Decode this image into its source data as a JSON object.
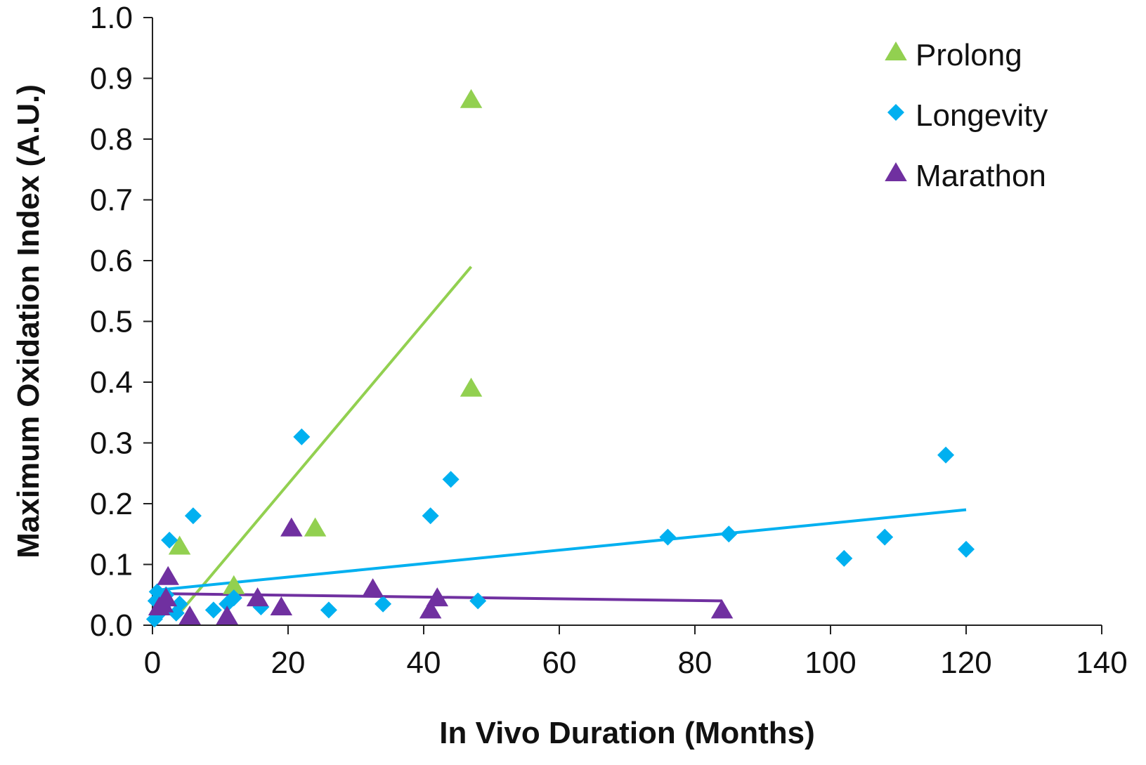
{
  "chart_data": {
    "type": "scatter",
    "xlabel": "In Vivo Duration (Months)",
    "ylabel": "Maximum Oxidation Index (A.U.)",
    "xlim": [
      0,
      140
    ],
    "ylim": [
      0,
      1.0
    ],
    "x_ticks": [
      "0",
      "20",
      "40",
      "60",
      "80",
      "100",
      "120",
      "140"
    ],
    "y_ticks": [
      "0.0",
      "0.1",
      "0.2",
      "0.3",
      "0.4",
      "0.5",
      "0.6",
      "0.7",
      "0.8",
      "0.9",
      "1.0"
    ],
    "grid": false,
    "legend_position": "top-right",
    "series": [
      {
        "name": "Prolong",
        "marker": "triangle",
        "color": "#92d050",
        "points": [
          [
            4,
            0.13
          ],
          [
            12,
            0.065
          ],
          [
            24,
            0.16
          ],
          [
            47,
            0.865
          ],
          [
            47,
            0.39
          ]
        ],
        "trendline": [
          [
            4,
            0.02
          ],
          [
            47,
            0.59
          ]
        ]
      },
      {
        "name": "Longevity",
        "marker": "diamond",
        "color": "#00b0f0",
        "points": [
          [
            0.3,
            0.01
          ],
          [
            0.5,
            0.04
          ],
          [
            0.7,
            0.055
          ],
          [
            1,
            0.02
          ],
          [
            1.5,
            0.03
          ],
          [
            2,
            0.05
          ],
          [
            2.5,
            0.14
          ],
          [
            3.5,
            0.02
          ],
          [
            4,
            0.035
          ],
          [
            6,
            0.18
          ],
          [
            9,
            0.025
          ],
          [
            11,
            0.035
          ],
          [
            12,
            0.045
          ],
          [
            16,
            0.03
          ],
          [
            22,
            0.31
          ],
          [
            26,
            0.025
          ],
          [
            34,
            0.035
          ],
          [
            41,
            0.18
          ],
          [
            44,
            0.24
          ],
          [
            48,
            0.04
          ],
          [
            76,
            0.145
          ],
          [
            85,
            0.15
          ],
          [
            102,
            0.11
          ],
          [
            108,
            0.145
          ],
          [
            117,
            0.28
          ],
          [
            120,
            0.125
          ]
        ],
        "trendline": [
          [
            0,
            0.057
          ],
          [
            120,
            0.19
          ]
        ]
      },
      {
        "name": "Marathon",
        "marker": "triangle",
        "color": "#7030a0",
        "points": [
          [
            1,
            0.03
          ],
          [
            1.5,
            0.035
          ],
          [
            2,
            0.045
          ],
          [
            2.3,
            0.08
          ],
          [
            5.5,
            0.015
          ],
          [
            11,
            0.015
          ],
          [
            15.5,
            0.045
          ],
          [
            19,
            0.03
          ],
          [
            20.5,
            0.16
          ],
          [
            32.5,
            0.06
          ],
          [
            41,
            0.025
          ],
          [
            42,
            0.045
          ],
          [
            84,
            0.025
          ]
        ],
        "trendline": [
          [
            1,
            0.052
          ],
          [
            84,
            0.04
          ]
        ]
      }
    ]
  }
}
